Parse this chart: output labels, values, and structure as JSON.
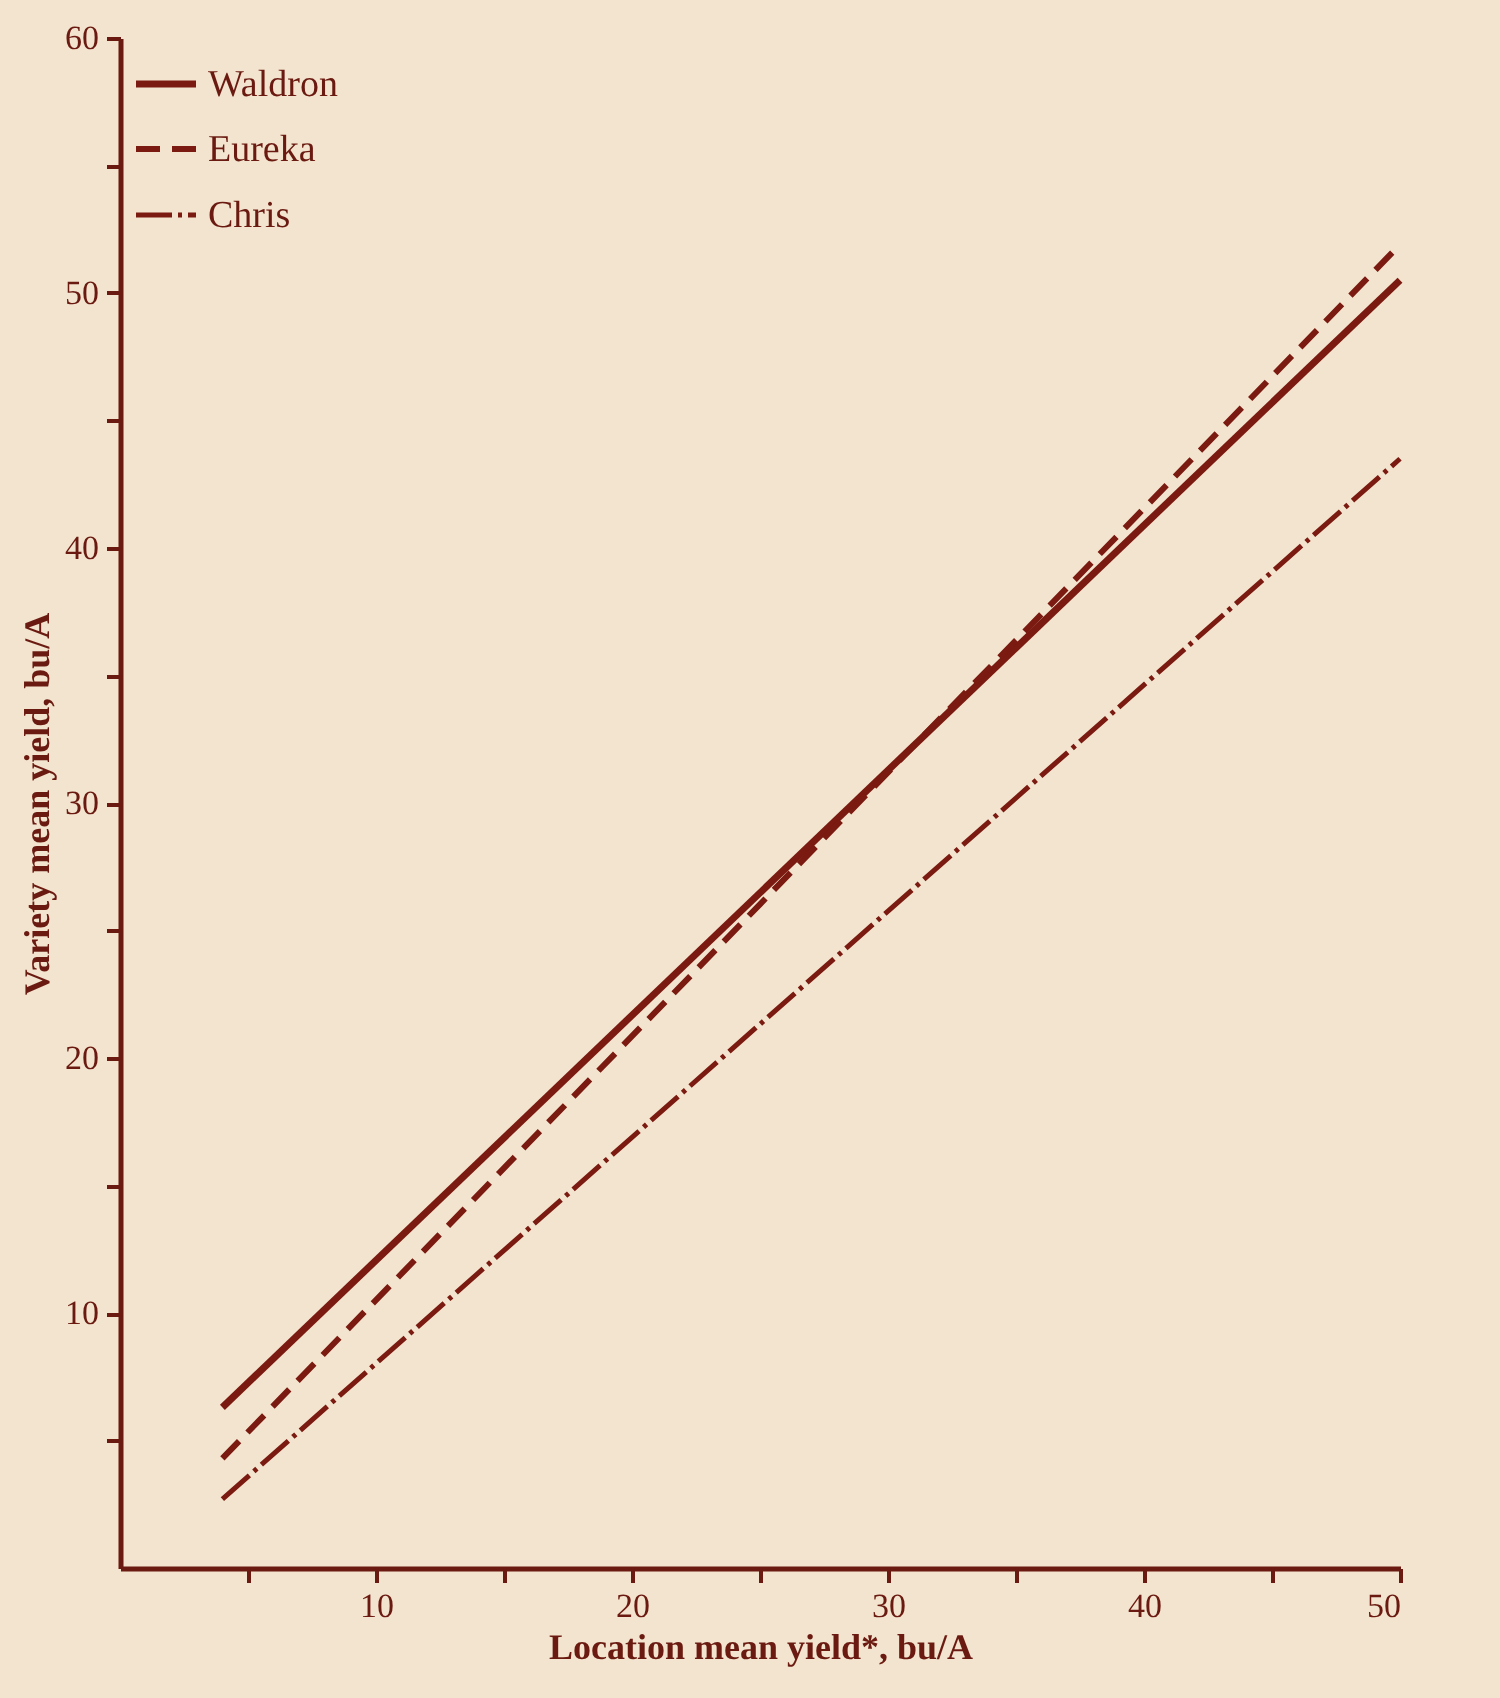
{
  "chart_data": {
    "type": "line",
    "xlabel": "Location mean yield*, bu/A",
    "ylabel": "Variety mean yield, bu/A",
    "x": [
      4,
      50
    ],
    "series": [
      {
        "name": "Waldron",
        "color": "#7a1a10",
        "line_style": "solid",
        "values": [
          6.3,
          50.5
        ]
      },
      {
        "name": "Eureka",
        "color": "#7a1a10",
        "line_style": "dashed",
        "values": [
          4.3,
          51.9
        ]
      },
      {
        "name": "Chris",
        "color": "#7a1a10",
        "line_style": "dashed",
        "values": [
          2.7,
          43.5
        ]
      }
    ],
    "xlim": [
      0,
      50
    ],
    "ylim": [
      0,
      60
    ],
    "xticks": [
      {
        "value": 5,
        "label": null
      },
      10,
      {
        "value": 15,
        "label": null
      },
      20,
      {
        "value": 25,
        "label": null
      },
      30,
      {
        "value": 35,
        "label": null
      },
      40,
      {
        "value": 45,
        "label": null
      },
      50
    ],
    "yticks": [
      {
        "value": 5,
        "label": null
      },
      10,
      {
        "value": 15,
        "label": null
      },
      20,
      {
        "value": 25,
        "label": null
      },
      30,
      {
        "value": 35,
        "label": null
      },
      40,
      {
        "value": 45,
        "label": null
      },
      50,
      {
        "value": 55,
        "label": null
      },
      60
    ],
    "grid": false,
    "legend": "top left",
    "marker": "none"
  }
}
